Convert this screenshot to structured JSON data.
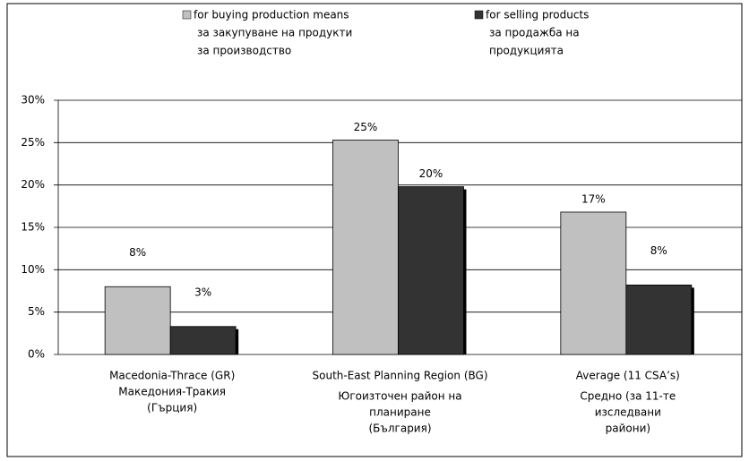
{
  "chart_data": {
    "type": "bar",
    "categories": [
      [
        "Macedonia-Thrace (GR)",
        "Македония-Тракия",
        "(Гърция)"
      ],
      [
        "South-East Planning Region (BG)",
        "Югоизточен район на",
        "планиране",
        "(България)"
      ],
      [
        "Average (11 CSA’s)",
        "Средно (за 11-те",
        "изследвани",
        "райони)"
      ]
    ],
    "series": [
      {
        "name": [
          "for buying production means",
          "за закупуване на  продукти",
          "за производство"
        ],
        "color": "#c0c0c0",
        "values": [
          8,
          25.3,
          16.8
        ],
        "value_labels": [
          "8%",
          "25%",
          "17%"
        ]
      },
      {
        "name": [
          "for selling products",
          "за продажба на",
          "продукцията"
        ],
        "color": "#333333",
        "values": [
          3.3,
          19.8,
          8.2
        ],
        "value_labels": [
          "3%",
          "20%",
          "8%"
        ]
      }
    ],
    "ylim": [
      0,
      30
    ],
    "yticks": [
      {
        "value": 0,
        "label": "0%"
      },
      {
        "value": 5,
        "label": "5%"
      },
      {
        "value": 10,
        "label": "10%"
      },
      {
        "value": 15,
        "label": "15%"
      },
      {
        "value": 20,
        "label": "20%"
      },
      {
        "value": 25,
        "label": "25%"
      },
      {
        "value": 30,
        "label": "30%"
      }
    ],
    "grid": true
  }
}
